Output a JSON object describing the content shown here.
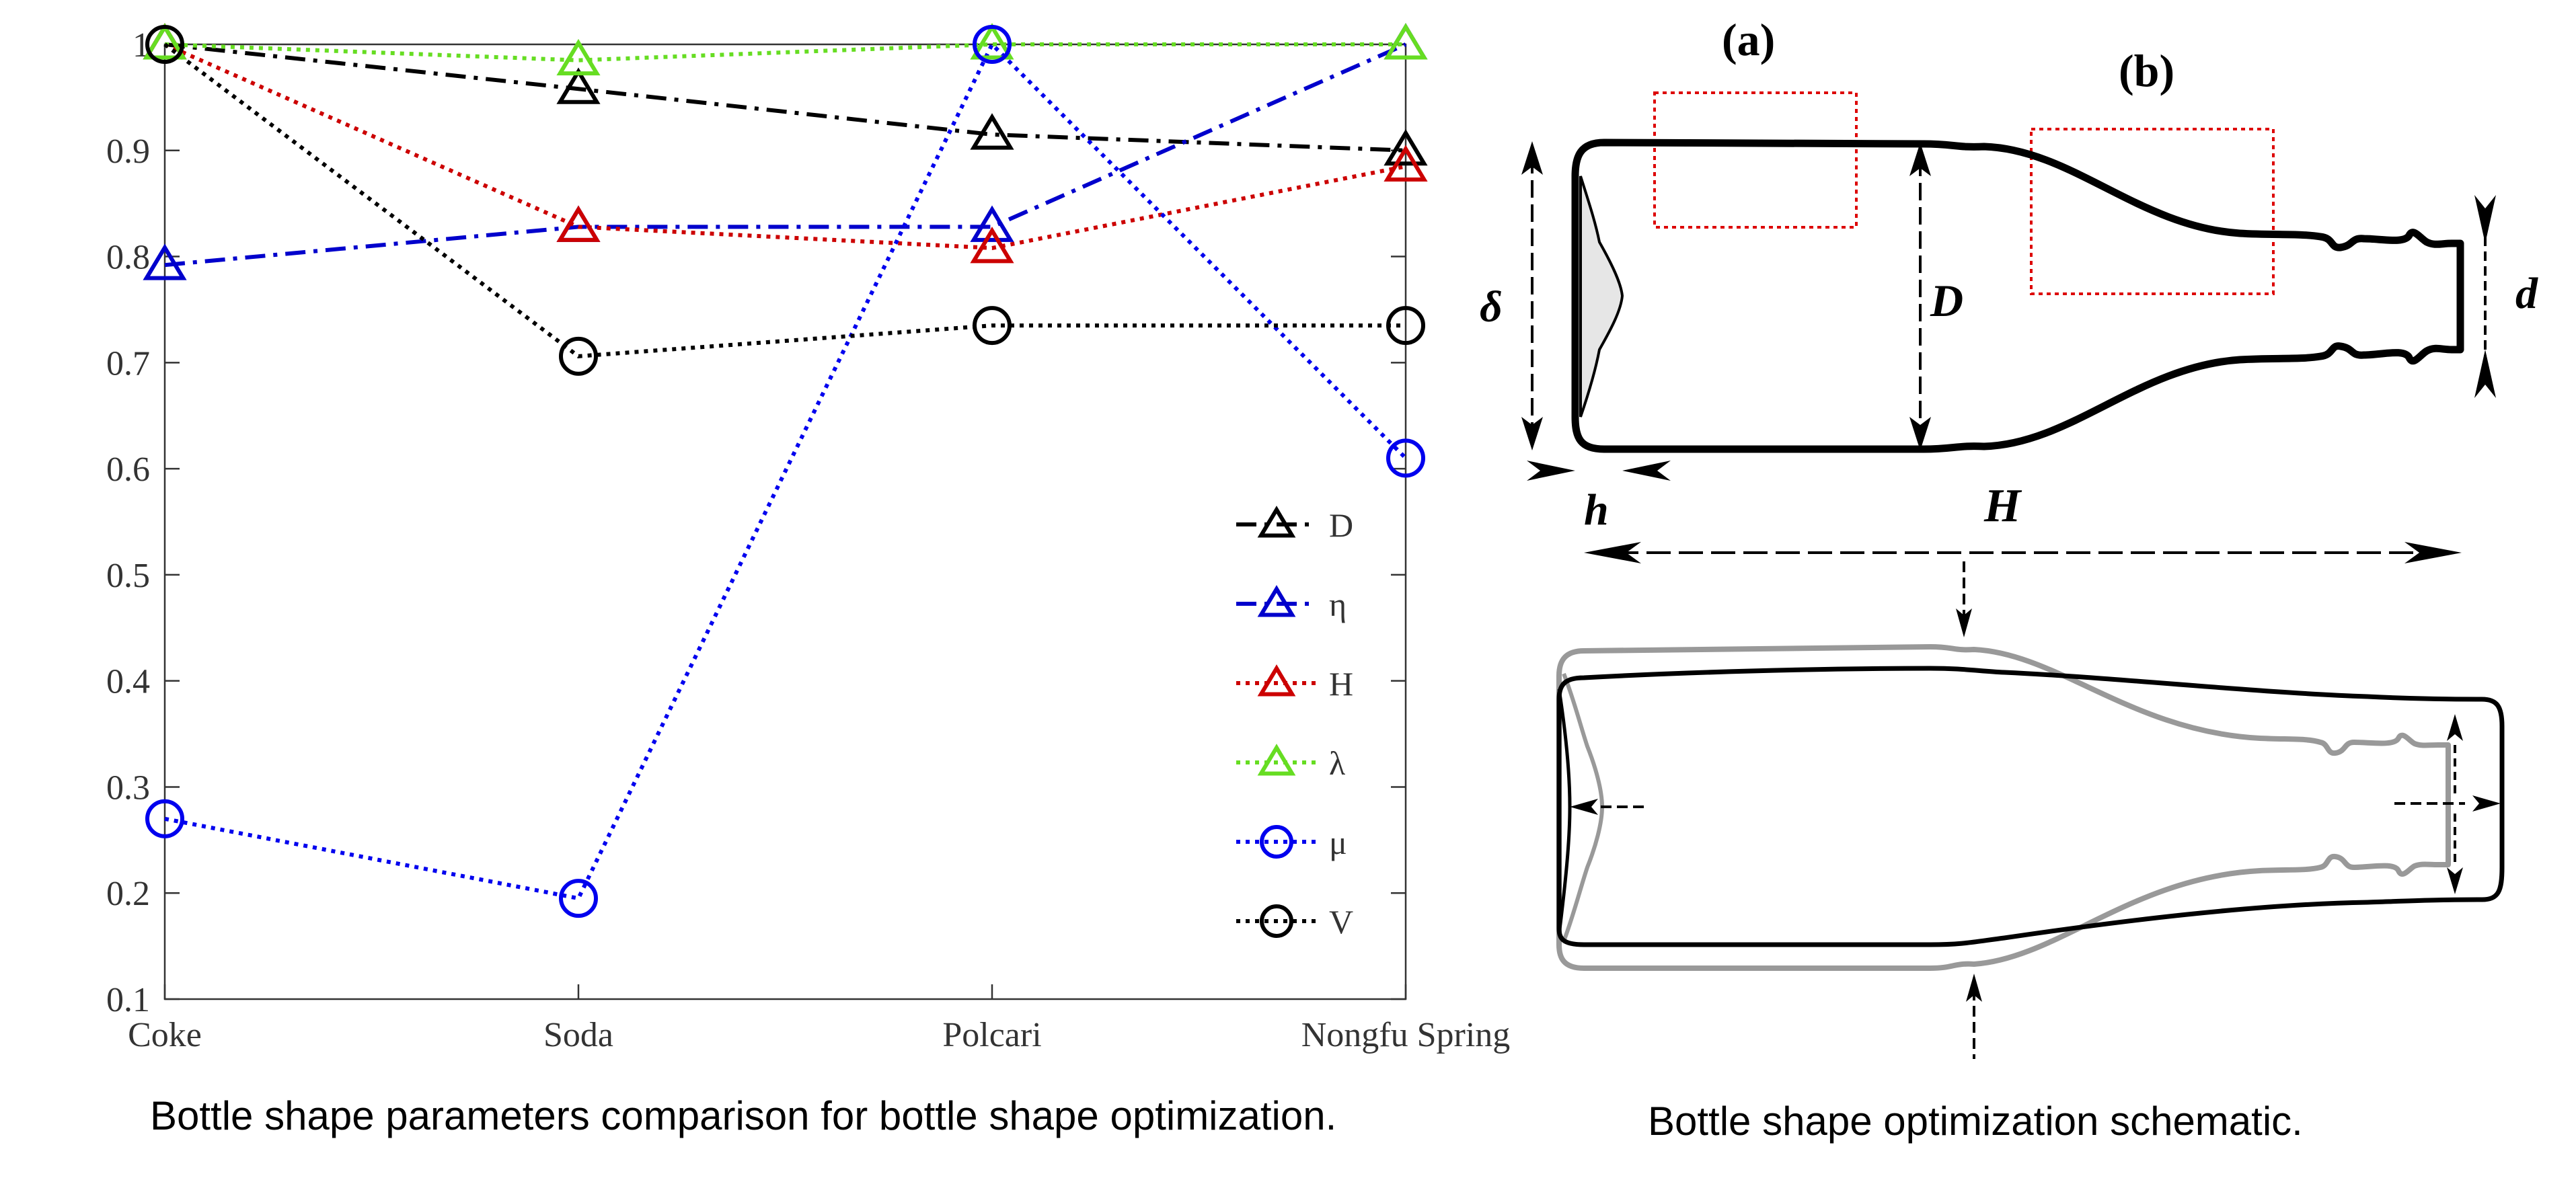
{
  "chart_data": {
    "type": "line",
    "categories": [
      "Coke",
      "Soda",
      "Polcari",
      "Nongfu Spring"
    ],
    "ylim": [
      0.1,
      1.0
    ],
    "yticks": [
      "0.1",
      "0.2",
      "0.3",
      "0.4",
      "0.5",
      "0.6",
      "0.7",
      "0.8",
      "0.9",
      "1"
    ],
    "grid": false,
    "legend_position": "lower-right",
    "series": [
      {
        "name": "D",
        "values": [
          1.0,
          0.958,
          0.915,
          0.9
        ],
        "color": "#000000",
        "marker": "triangle",
        "dash": "dashdot"
      },
      {
        "name": "η",
        "values": [
          0.792,
          0.828,
          0.828,
          1.0
        ],
        "color": "#0000cc",
        "marker": "triangle",
        "dash": "dashdot"
      },
      {
        "name": "H",
        "values": [
          1.0,
          0.828,
          0.808,
          0.885
        ],
        "color": "#cc0000",
        "marker": "triangle",
        "dash": "dotted"
      },
      {
        "name": "λ",
        "values": [
          1.0,
          0.985,
          1.0,
          1.0
        ],
        "color": "#66dd22",
        "marker": "triangle",
        "dash": "dotted"
      },
      {
        "name": "μ",
        "values": [
          0.27,
          0.195,
          1.0,
          0.61
        ],
        "color": "#0000ee",
        "marker": "circle",
        "dash": "dotted"
      },
      {
        "name": "V",
        "values": [
          1.0,
          0.706,
          0.735,
          0.735
        ],
        "color": "#000000",
        "marker": "circle",
        "dash": "dotted"
      }
    ]
  },
  "captions": {
    "left": "Bottle shape parameters comparison for bottle shape optimization.",
    "right": "Bottle shape optimization schematic."
  },
  "schematic": {
    "panel_a": "(a)",
    "panel_b": "(b)",
    "label_D": "D",
    "label_delta": "δ",
    "label_d": "d",
    "label_h": "h",
    "label_H": "H"
  },
  "colors": {
    "highlight_box": "#dd0000",
    "bottle_outline": "#000000",
    "original_outline": "#999999"
  }
}
